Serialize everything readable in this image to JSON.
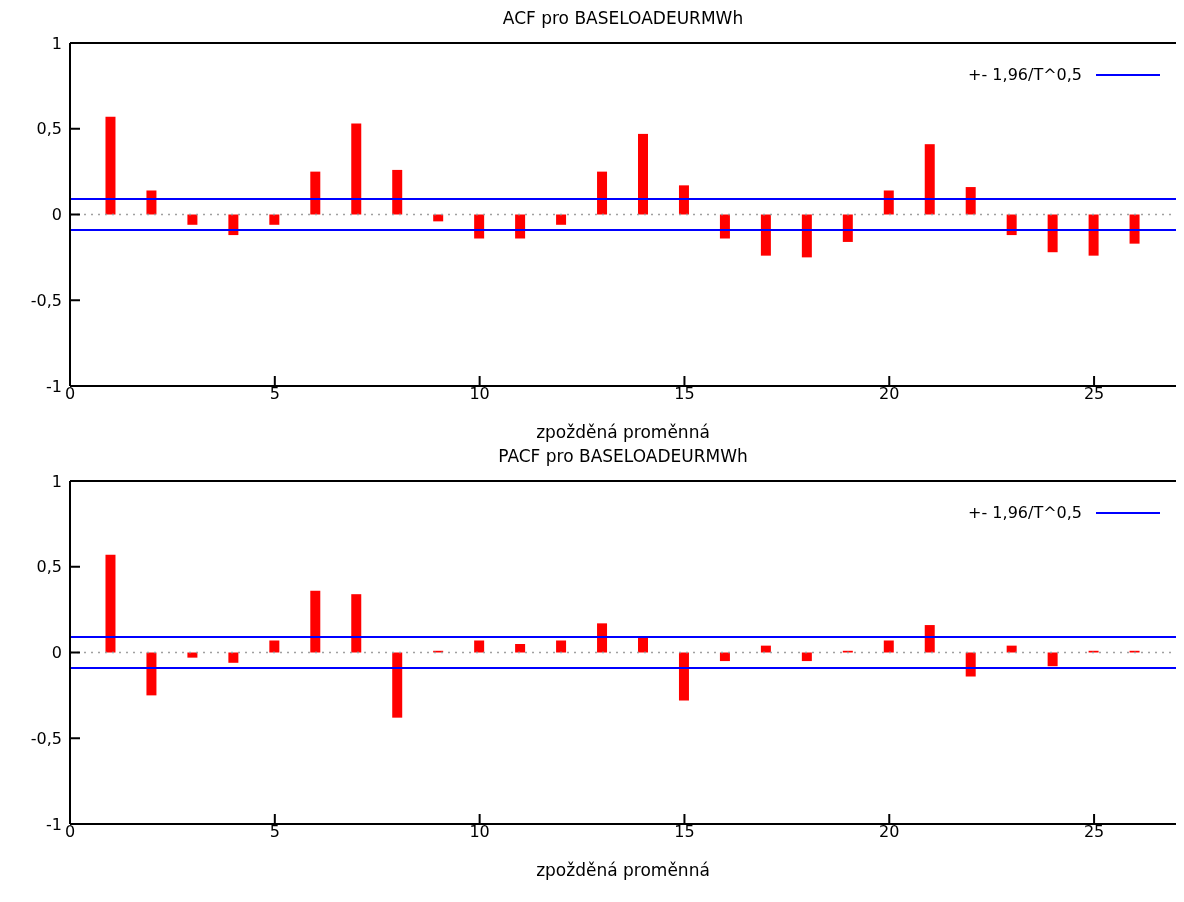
{
  "chart_data": [
    {
      "type": "bar",
      "title": "ACF pro BASELOADEURMWh",
      "xlabel": "zpožděná proměnná",
      "x": [
        1,
        2,
        3,
        4,
        5,
        6,
        7,
        8,
        9,
        10,
        11,
        12,
        13,
        14,
        15,
        16,
        17,
        18,
        19,
        20,
        21,
        22,
        23,
        24,
        25,
        26
      ],
      "values": [
        0.57,
        0.14,
        -0.06,
        -0.12,
        -0.06,
        0.25,
        0.53,
        0.26,
        -0.04,
        -0.14,
        -0.14,
        -0.06,
        0.25,
        0.47,
        0.17,
        -0.14,
        -0.24,
        -0.25,
        -0.16,
        0.14,
        0.41,
        0.16,
        -0.12,
        -0.22,
        -0.24,
        -0.17
      ],
      "color": "#ff0000",
      "xlim": [
        0,
        27
      ],
      "xticks": [
        0,
        5,
        10,
        15,
        20,
        25
      ],
      "ylim": [
        -1,
        1
      ],
      "yticks": [
        {
          "value": -1,
          "label": "-1"
        },
        {
          "value": -0.5,
          "label": "-0,5"
        },
        {
          "value": 0,
          "label": "0"
        },
        {
          "value": 0.5,
          "label": "0,5"
        },
        {
          "value": 1,
          "label": "1"
        }
      ],
      "ref_lines": [
        {
          "axis": "y",
          "value": 0.09,
          "label": "+- 1,96/T^0,5",
          "color": "#0000ff",
          "line_style": "solid"
        },
        {
          "axis": "y",
          "value": -0.09,
          "color": "#0000ff",
          "line_style": "solid"
        },
        {
          "axis": "y",
          "value": 0,
          "color": "#a0a0a0",
          "line_style": "dotted"
        }
      ],
      "legend": "top right",
      "grid": false
    },
    {
      "type": "bar",
      "title": "PACF pro BASELOADEURMWh",
      "xlabel": "zpožděná proměnná",
      "x": [
        1,
        2,
        3,
        4,
        5,
        6,
        7,
        8,
        9,
        10,
        11,
        12,
        13,
        14,
        15,
        16,
        17,
        18,
        19,
        20,
        21,
        22,
        23,
        24,
        25,
        26
      ],
      "values": [
        0.57,
        -0.25,
        -0.03,
        -0.06,
        0.07,
        0.36,
        0.34,
        -0.38,
        0.01,
        0.07,
        0.05,
        0.07,
        0.17,
        0.09,
        -0.28,
        -0.05,
        0.04,
        -0.05,
        0.01,
        0.07,
        0.16,
        -0.14,
        0.04,
        -0.08,
        0.01,
        0.01
      ],
      "color": "#ff0000",
      "xlim": [
        0,
        27
      ],
      "xticks": [
        0,
        5,
        10,
        15,
        20,
        25
      ],
      "ylim": [
        -1,
        1
      ],
      "yticks": [
        {
          "value": -1,
          "label": "-1"
        },
        {
          "value": -0.5,
          "label": "-0,5"
        },
        {
          "value": 0,
          "label": "0"
        },
        {
          "value": 0.5,
          "label": "0,5"
        },
        {
          "value": 1,
          "label": "1"
        }
      ],
      "ref_lines": [
        {
          "axis": "y",
          "value": 0.09,
          "label": "+- 1,96/T^0,5",
          "color": "#0000ff",
          "line_style": "solid"
        },
        {
          "axis": "y",
          "value": -0.09,
          "color": "#0000ff",
          "line_style": "solid"
        },
        {
          "axis": "y",
          "value": 0,
          "color": "#a0a0a0",
          "line_style": "dotted"
        }
      ],
      "legend": "top right",
      "grid": false
    }
  ]
}
